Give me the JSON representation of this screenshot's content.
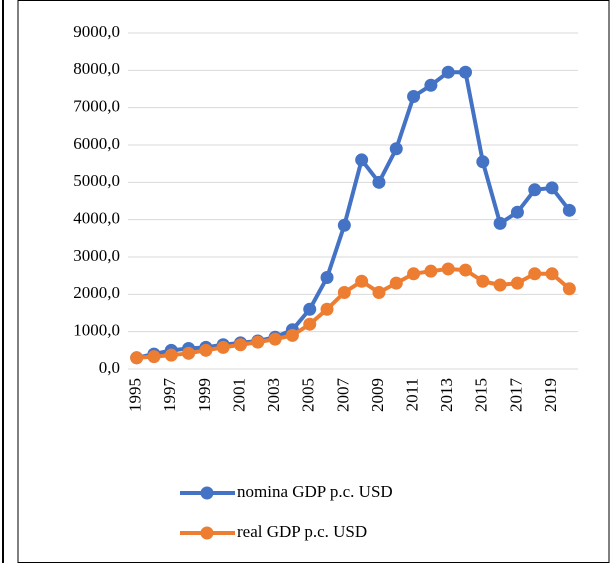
{
  "chart_data": {
    "type": "line",
    "categories": [
      "1995",
      null,
      "1997",
      null,
      "1999",
      null,
      "2001",
      null,
      "2003",
      null,
      "2005",
      null,
      "2007",
      null,
      "2009",
      null,
      "2011",
      null,
      "2013",
      null,
      "2015",
      null,
      "2017",
      null,
      "2019",
      null
    ],
    "series": [
      {
        "name": "nomina GDP p.c. USD",
        "color": "#4472c4",
        "values": [
          300,
          400,
          500,
          550,
          580,
          650,
          700,
          750,
          850,
          1050,
          1600,
          2450,
          3850,
          5600,
          5000,
          5900,
          7300,
          7600,
          7950,
          7950,
          5550,
          3900,
          4200,
          4800,
          4850,
          4250
        ]
      },
      {
        "name": "real GDP p.c. USD",
        "color": "#ed7d31",
        "values": [
          300,
          330,
          370,
          420,
          500,
          580,
          650,
          720,
          800,
          900,
          1200,
          1600,
          2050,
          2350,
          2050,
          2300,
          2550,
          2620,
          2680,
          2650,
          2350,
          2250,
          2300,
          2550,
          2550,
          2150
        ]
      }
    ],
    "ylim": [
      0,
      9000
    ],
    "yticks": [
      {
        "value": 0,
        "label": "0,0"
      },
      {
        "value": 1000,
        "label": "1000,0"
      },
      {
        "value": 2000,
        "label": "2000,0"
      },
      {
        "value": 3000,
        "label": "3000,0"
      },
      {
        "value": 4000,
        "label": "4000,0"
      },
      {
        "value": 5000,
        "label": "5000,0"
      },
      {
        "value": 6000,
        "label": "6000,0"
      },
      {
        "value": 7000,
        "label": "7000,0"
      },
      {
        "value": 8000,
        "label": "8000,0"
      },
      {
        "value": 9000,
        "label": "9000,0"
      }
    ],
    "grid": true,
    "legend": "bottom"
  }
}
